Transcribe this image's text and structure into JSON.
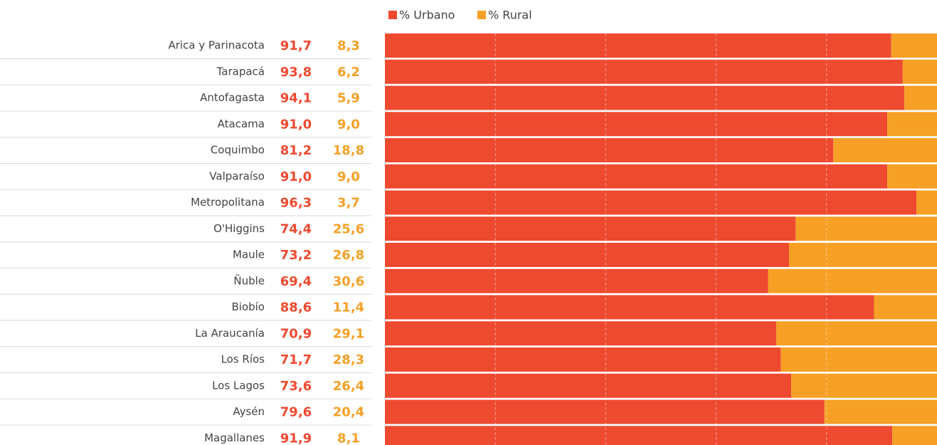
{
  "chart_data": {
    "type": "stacked_bar_horizontal",
    "categories": [
      "Arica y Parinacota",
      "Tarapacá",
      "Antofagasta",
      "Atacama",
      "Coquimbo",
      "Valparaíso",
      "Metropolitana",
      "O'Higgins",
      "Maule",
      "Ñuble",
      "Biobío",
      "La Araucanía",
      "Los Ríos",
      "Los Lagos",
      "Aysén",
      "Magallanes"
    ],
    "series": [
      {
        "name": "% Urbano",
        "color": "#ee4a30",
        "values": [
          91.7,
          93.8,
          94.1,
          91.0,
          81.2,
          91.0,
          96.3,
          74.4,
          73.2,
          69.4,
          88.6,
          70.9,
          71.7,
          73.6,
          79.6,
          91.9
        ],
        "value_labels": [
          "91,7",
          "93,8",
          "94,1",
          "91,0",
          "81,2",
          "91,0",
          "96,3",
          "74,4",
          "73,2",
          "69,4",
          "88,6",
          "70,9",
          "71,7",
          "73,6",
          "79,6",
          "91,9"
        ]
      },
      {
        "name": "% Rural",
        "color": "#f6a026",
        "values": [
          8.3,
          6.2,
          5.9,
          9.0,
          18.8,
          9.0,
          3.7,
          25.6,
          26.8,
          30.6,
          11.4,
          29.1,
          28.3,
          26.4,
          20.4,
          8.1
        ],
        "value_labels": [
          "8,3",
          "6,2",
          "5,9",
          "9,0",
          "18,8",
          "9,0",
          "3,7",
          "25,6",
          "26,8",
          "30,6",
          "11,4",
          "29,1",
          "28,3",
          "26,4",
          "20,4",
          "8,1"
        ]
      }
    ],
    "xlim": [
      0,
      100
    ],
    "xticks": [
      20,
      40,
      60,
      80
    ],
    "grid": true
  }
}
